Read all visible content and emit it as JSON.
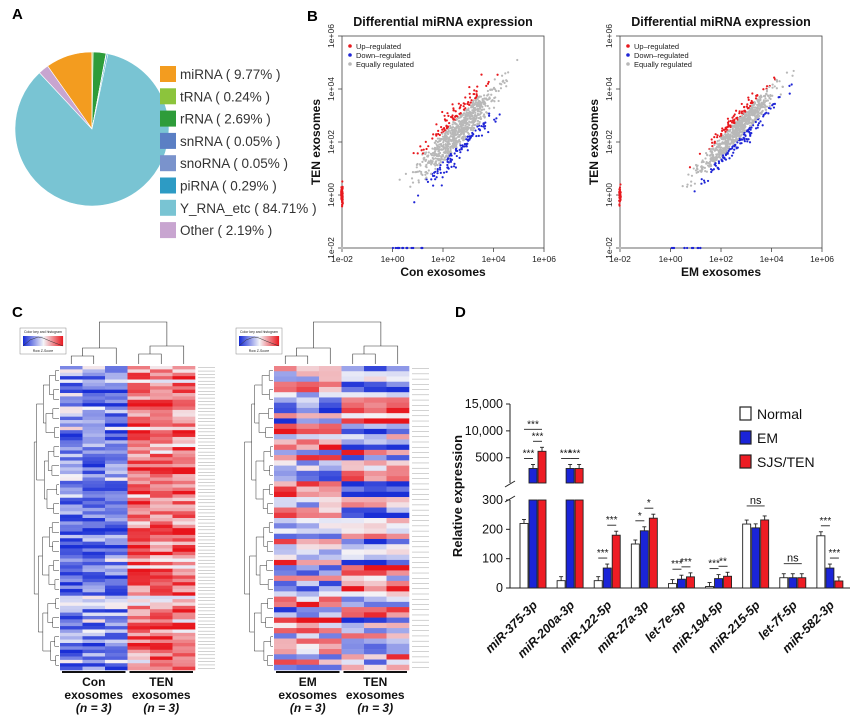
{
  "panels": {
    "a": "A",
    "b": "B",
    "c": "C",
    "d": "D"
  },
  "colors": {
    "up": "#e8191e",
    "down": "#1f25d6",
    "equal": "#b8b8b8",
    "normal": "#ffffff",
    "em": "#1a24d8",
    "sjs": "#ee1c24",
    "heat_low": "#1a2fd6",
    "heat_mid": "#f4f4f8",
    "heat_high": "#e8141b"
  },
  "chart_data": [
    {
      "id": "A",
      "type": "pie",
      "legend_placement": "right",
      "slices": [
        {
          "label": "miRNA",
          "text": "miRNA ( 9.77% )",
          "value": 9.77,
          "color": "#f39c1f"
        },
        {
          "label": "tRNA",
          "text": "tRNA ( 0.24% )",
          "value": 0.24,
          "color": "#8cc43c"
        },
        {
          "label": "rRNA",
          "text": "rRNA ( 2.69% )",
          "value": 2.69,
          "color": "#2e9c3a"
        },
        {
          "label": "snRNA",
          "text": "snRNA ( 0.05% )",
          "value": 0.05,
          "color": "#5b7fc4"
        },
        {
          "label": "snoRNA",
          "text": "snoRNA ( 0.05% )",
          "value": 0.05,
          "color": "#7a93cc"
        },
        {
          "label": "piRNA",
          "text": "piRNA ( 0.29% )",
          "value": 0.29,
          "color": "#2d9bc4"
        },
        {
          "label": "Y_RNA_etc",
          "text": "Y_RNA_etc ( 84.71% )",
          "value": 84.71,
          "color": "#79c4d3"
        },
        {
          "label": "Other",
          "text": "Other ( 2.19% )",
          "value": 2.19,
          "color": "#c8a5d0"
        }
      ]
    },
    {
      "id": "B-left",
      "type": "scatter",
      "title": "Differential miRNA expression",
      "xlabel": "Con exosomes",
      "ylabel": "TEN exosomes",
      "scale": "log10",
      "xlim": [
        0.01,
        1000000
      ],
      "ylim": [
        0.01,
        1000000
      ],
      "xticks": [
        "1e-02",
        "1e+00",
        "1e+02",
        "1e+04",
        "1e+06"
      ],
      "yticks": [
        "1e-02",
        "1e+00",
        "1e+02",
        "1e+04",
        "1e+06"
      ],
      "legend": [
        "Up–regulated",
        "Down–regulated",
        "Equally regulated"
      ],
      "legend_placement": "top-left",
      "grid": false
    },
    {
      "id": "B-right",
      "type": "scatter",
      "title": "Differential miRNA expression",
      "xlabel": "EM exosomes",
      "ylabel": "TEN exosomes",
      "scale": "log10",
      "xlim": [
        0.01,
        1000000
      ],
      "ylim": [
        0.01,
        1000000
      ],
      "xticks": [
        "1e-02",
        "1e+00",
        "1e+02",
        "1e+04",
        "1e+06"
      ],
      "yticks": [
        "1e-02",
        "1e+00",
        "1e+02",
        "1e+04",
        "1e+06"
      ],
      "legend": [
        "Up–regulated",
        "Down–regulated",
        "Equally regulated"
      ],
      "legend_placement": "top-left",
      "grid": false
    },
    {
      "id": "C",
      "type": "heatmap",
      "key_title": "Color key and histogram",
      "key_label": "Row Z-Score",
      "left": {
        "groups": [
          {
            "name": "Con",
            "sub": "exosomes",
            "n": "(n = 3)"
          },
          {
            "name": "TEN",
            "sub": "exosomes",
            "n": "(n = 3)"
          }
        ],
        "rows": 90,
        "cols": 6
      },
      "right": {
        "groups": [
          {
            "name": "EM",
            "sub": "exosomes",
            "n": "(n = 3)"
          },
          {
            "name": "TEN",
            "sub": "exosomes",
            "n": "(n = 3)"
          }
        ],
        "rows": 58,
        "cols": 6
      }
    },
    {
      "id": "D",
      "type": "bar",
      "ylabel": "Relative expression",
      "y_axis": "broken",
      "yticks_lower": [
        "0",
        "100",
        "200",
        "300"
      ],
      "yticks_upper": [
        "5000",
        "10,000",
        "15,000"
      ],
      "categories": [
        "miR-375-3p",
        "miR-200a-3p",
        "miR-122-5p",
        "miR-27a-3p",
        "let-7e-5p",
        "miR-194-5p",
        "miR-215-5p",
        "let-7f-5p",
        "miR-582-3p"
      ],
      "series": [
        {
          "name": "Normal",
          "values": [
            220,
            25,
            25,
            150,
            15,
            5,
            218,
            35,
            178
          ]
        },
        {
          "name": "EM",
          "values": [
            3000,
            3000,
            68,
            195,
            30,
            32,
            205,
            35,
            68
          ]
        },
        {
          "name": "SJS/TEN",
          "values": [
            6200,
            3000,
            180,
            238,
            38,
            40,
            232,
            35,
            24
          ]
        }
      ],
      "significance": [
        {
          "cat": 0,
          "labels": [
            "***",
            "***",
            "***"
          ]
        },
        {
          "cat": 1,
          "labels": [
            "***",
            "***"
          ]
        },
        {
          "cat": 2,
          "labels": [
            "***",
            "***"
          ]
        },
        {
          "cat": 3,
          "labels": [
            "*",
            "*"
          ]
        },
        {
          "cat": 4,
          "labels": [
            "***",
            "***"
          ]
        },
        {
          "cat": 5,
          "labels": [
            "***",
            "**"
          ]
        },
        {
          "cat": 6,
          "labels": [
            "ns"
          ]
        },
        {
          "cat": 7,
          "labels": [
            "ns"
          ]
        },
        {
          "cat": 8,
          "labels": [
            "***",
            "***"
          ]
        }
      ],
      "legend_placement": "top-right"
    }
  ]
}
